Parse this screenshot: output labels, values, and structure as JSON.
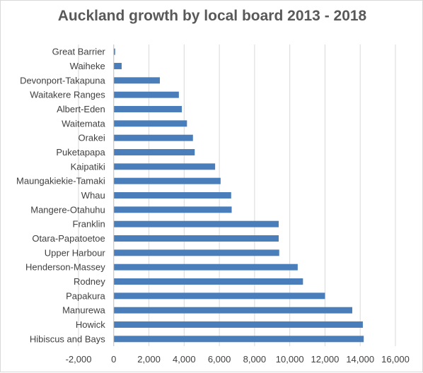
{
  "chart_data": {
    "type": "bar",
    "orientation": "horizontal",
    "title": "Auckland growth by local board 2013 - 2018",
    "xlabel": "",
    "ylabel": "",
    "xlim": [
      -2000,
      16000
    ],
    "x_ticks": [
      -2000,
      0,
      2000,
      4000,
      6000,
      8000,
      10000,
      12000,
      14000,
      16000
    ],
    "x_tick_labels": [
      "-2,000",
      "0",
      "2,000",
      "4,000",
      "6,000",
      "8,000",
      "10,000",
      "12,000",
      "14,000",
      "16,000"
    ],
    "grid": "vertical",
    "legend": "none",
    "bar_color": "#4a7ebb",
    "categories": [
      "Great Barrier",
      "Waiheke",
      "Devonport-Takapuna",
      "Waitakere Ranges",
      "Albert-Eden",
      "Waitemata",
      "Orakei",
      "Puketapapa",
      "Kaipatiki",
      "Maungakiekie-Tamaki",
      "Whau",
      "Mangere-Otahuhu",
      "Franklin",
      "Otara-Papatoetoe",
      "Upper Harbour",
      "Henderson-Massey",
      "Rodney",
      "Papakura",
      "Manurewa",
      "Howick",
      "Hibiscus and Bays"
    ],
    "values": [
      80,
      450,
      2620,
      3700,
      3870,
      4160,
      4500,
      4600,
      5760,
      6070,
      6670,
      6700,
      9370,
      9370,
      9400,
      10450,
      10750,
      12000,
      13550,
      14150,
      14200
    ]
  }
}
